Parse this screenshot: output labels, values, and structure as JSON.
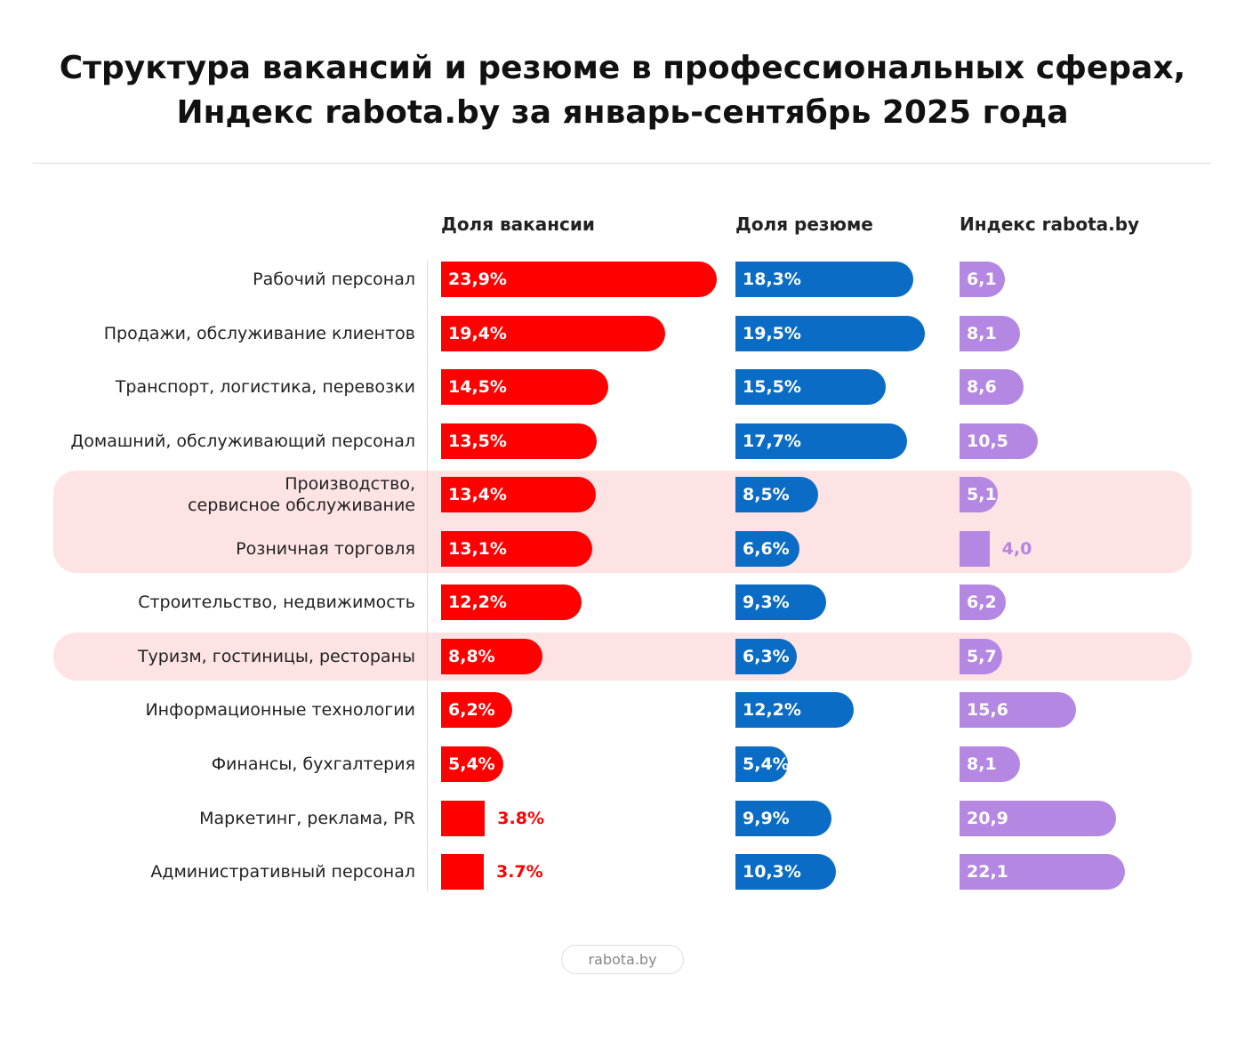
{
  "chart_data": {
    "type": "bar",
    "title": "Структура вакансий и резюме в профессиональных сферах,\nИндекс rabota.by за январь-сентябрь 2025 года",
    "categories": [
      "Рабочий персонал",
      "Продажи, обслуживание клиентов",
      "Транспорт, логистика, перевозки",
      "Домашний, обслуживающий персонал",
      "Производство,\nсервисное обслуживание",
      "Розничная торговля",
      "Строительство, недвижимость",
      "Туризм, гостиницы, рестораны",
      "Информационные технологии",
      "Финансы, бухгалтерия",
      "Маркетинг, реклама, PR",
      "Административный персонал"
    ],
    "series": [
      {
        "name": "Доля вакансии",
        "color": "#ff0000",
        "values": [
          23.9,
          19.4,
          14.5,
          13.5,
          13.4,
          13.1,
          12.2,
          8.8,
          6.2,
          5.4,
          3.8,
          3.7
        ],
        "value_labels": [
          "23,9%",
          "19,4%",
          "14,5%",
          "13,5%",
          "13,4%",
          "13,1%",
          "12,2%",
          "8,8%",
          "6,2%",
          "5,4%",
          "3.8%",
          "3.7%"
        ]
      },
      {
        "name": "Доля резюме",
        "color": "#0a6cc4",
        "values": [
          18.3,
          19.5,
          15.5,
          17.7,
          8.5,
          6.6,
          9.3,
          6.3,
          12.2,
          5.4,
          9.9,
          10.3
        ],
        "value_labels": [
          "18,3%",
          "19,5%",
          "15,5%",
          "17,7%",
          "8,5%",
          "6,6%",
          "9,3%",
          "6,3%",
          "12,2%",
          "5,4%",
          "9,9%",
          "10,3%"
        ]
      },
      {
        "name": "Индекс rabota.by",
        "color": "#b487e2",
        "values": [
          6.1,
          8.1,
          8.6,
          10.5,
          5.1,
          4.0,
          6.2,
          5.7,
          15.6,
          8.1,
          20.9,
          22.1
        ],
        "value_labels": [
          "6,1",
          "8,1",
          "8,6",
          "10,5",
          "5,1",
          "4,0",
          "6,2",
          "5,7",
          "15,6",
          "8,1",
          "20,9",
          "22,1"
        ]
      }
    ],
    "highlight": [
      4,
      5,
      7
    ]
  },
  "footer": "rabota.by"
}
